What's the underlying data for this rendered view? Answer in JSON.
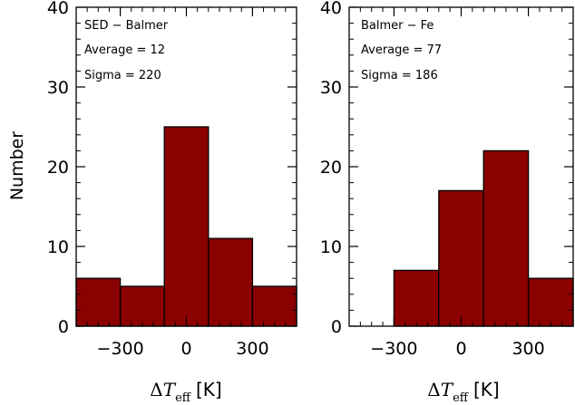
{
  "figure": {
    "ylabel": "Number",
    "xlabel": {
      "delta": "Δ",
      "symbol": "T",
      "subscript": "eff",
      "unit": "[K]"
    }
  },
  "chart_data": [
    {
      "type": "bar",
      "bin_edges": [
        -500,
        -300,
        -100,
        100,
        300,
        500
      ],
      "values": [
        6,
        5,
        25,
        11,
        5
      ],
      "xlim": [
        -500,
        500
      ],
      "ylim": [
        0,
        40
      ],
      "xticks": [
        -300,
        0,
        300
      ],
      "xtick_labels": [
        "−300",
        "0",
        "300"
      ],
      "yticks": [
        0,
        10,
        20,
        30,
        40
      ],
      "ytick_labels": [
        "0",
        "10",
        "20",
        "30",
        "40"
      ],
      "bar_color": "#8b0000",
      "annotations": [
        "SED − Balmer",
        "Average = 12",
        "Sigma = 220"
      ]
    },
    {
      "type": "bar",
      "bin_edges": [
        -300,
        -100,
        100,
        300,
        500
      ],
      "values": [
        7,
        17,
        22,
        6
      ],
      "xlim": [
        -500,
        500
      ],
      "ylim": [
        0,
        40
      ],
      "xticks": [
        -300,
        0,
        300
      ],
      "xtick_labels": [
        "−300",
        "0",
        "300"
      ],
      "yticks": [
        0,
        10,
        20,
        30,
        40
      ],
      "ytick_labels": [
        "0",
        "10",
        "20",
        "30",
        "40"
      ],
      "bar_color": "#8b0000",
      "annotations": [
        "Balmer − Fe",
        "Average = 77",
        "Sigma = 186"
      ]
    }
  ]
}
